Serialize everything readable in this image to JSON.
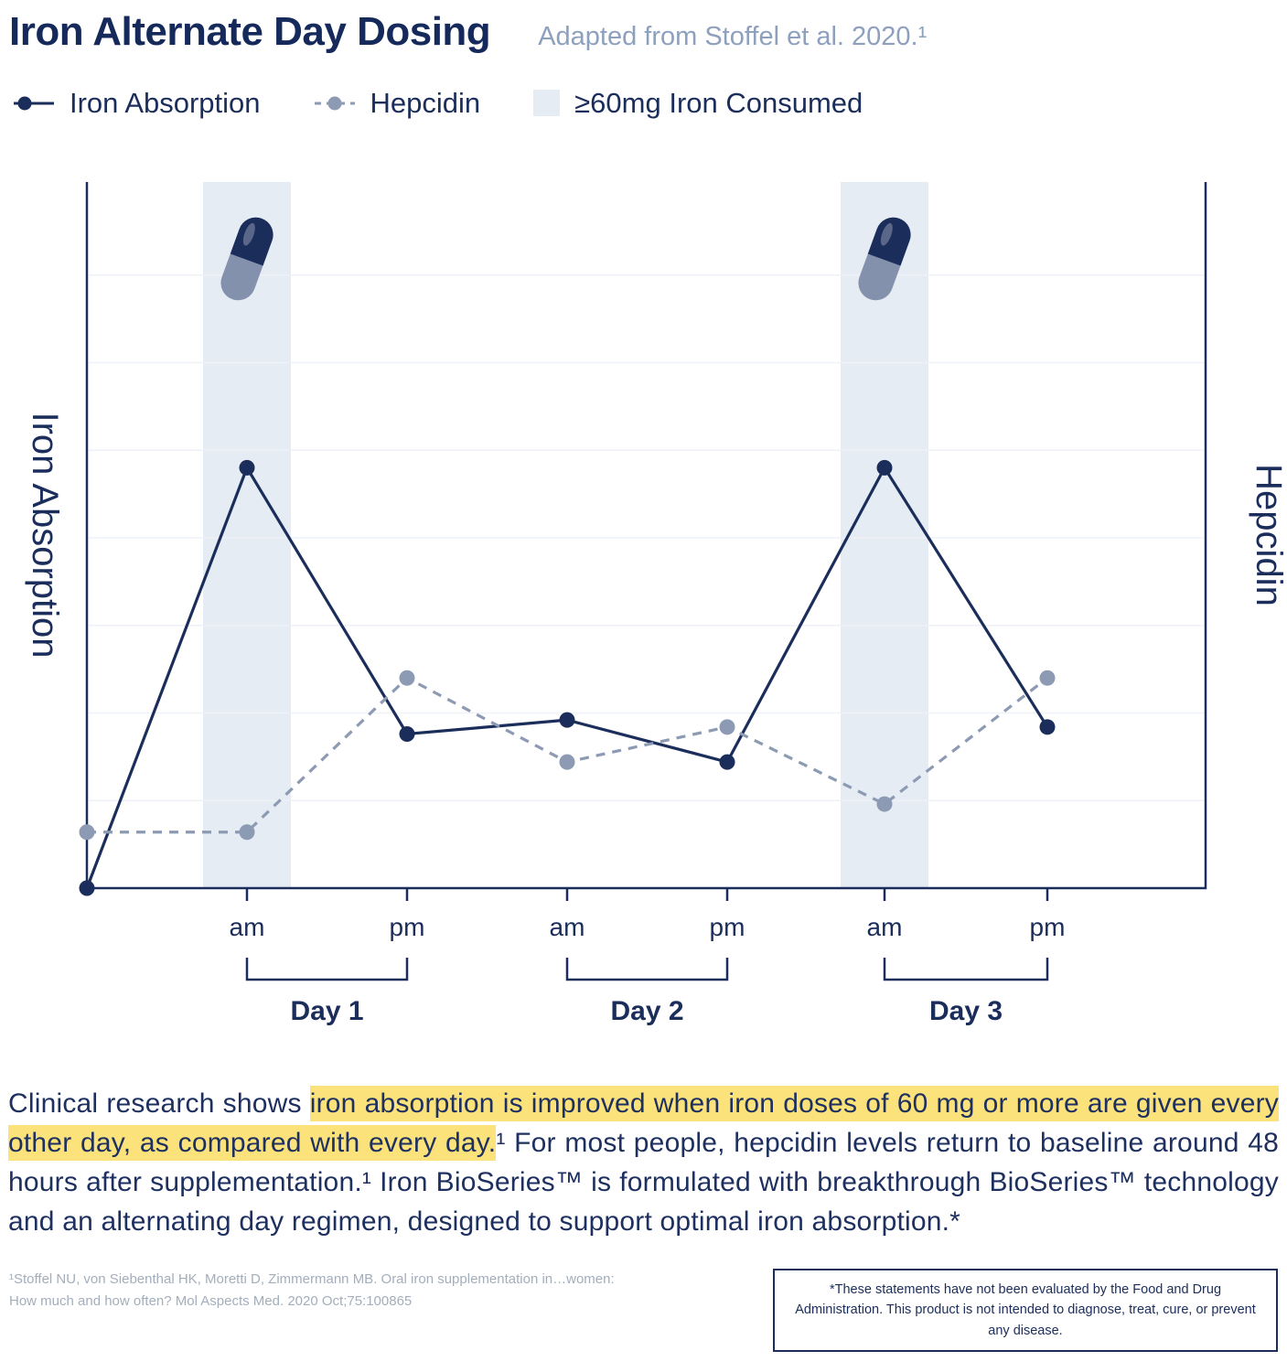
{
  "header": {
    "title": "Iron Alternate Day Dosing",
    "subtitle": "Adapted from Stoffel et al. 2020.¹"
  },
  "legend": {
    "iron": "Iron Absorption",
    "hepcidin": "Hepcidin",
    "band": "≥60mg Iron Consumed"
  },
  "colors": {
    "navy": "#1b2d5b",
    "grayblue": "#8c9ab3",
    "band": "#e6ecf3",
    "highlight": "#fbe27b",
    "pill_bottom": "#8391ad"
  },
  "chart_data": {
    "type": "line",
    "title": "Iron Alternate Day Dosing",
    "left_axis_label": "Iron Absorption",
    "right_axis_label": "Hepcidin",
    "x_ticks": [
      "am",
      "pm",
      "am",
      "pm",
      "am",
      "pm"
    ],
    "day_groups": [
      {
        "label": "Day 1",
        "ticks": [
          0,
          1
        ]
      },
      {
        "label": "Day 2",
        "ticks": [
          2,
          3
        ]
      },
      {
        "label": "Day 3",
        "ticks": [
          4,
          5
        ]
      }
    ],
    "ylim": [
      0,
      100
    ],
    "grid": "faint-horizontal",
    "legend_position": "top",
    "series": [
      {
        "name": "Iron Absorption",
        "style": "solid",
        "color": "#1b2d5b",
        "x": [
          -1,
          0,
          1,
          2,
          3,
          4,
          5
        ],
        "values": [
          0,
          60,
          22,
          24,
          18,
          60,
          23
        ]
      },
      {
        "name": "Hepcidin",
        "style": "dashed",
        "color": "#8c9ab3",
        "x": [
          -1,
          0,
          1,
          2,
          3,
          4,
          5
        ],
        "values": [
          8,
          8,
          30,
          18,
          23,
          12,
          30
        ]
      }
    ],
    "shaded_bands": {
      "label": "≥60mg Iron Consumed",
      "tick_indices": [
        0,
        4
      ]
    },
    "pill_at_ticks": [
      0,
      4
    ]
  },
  "body": {
    "segments": [
      {
        "text": "Clinical research shows ",
        "highlight": false
      },
      {
        "text": "iron absorption is improved when iron doses of 60 mg or more are given every other day, as compared with every day.",
        "highlight": true
      },
      {
        "text": "¹ For most people, hepcidin levels return to baseline around 48 hours after supplementation.¹ Iron BioSeries™ is formulated with breakthrough BioSeries™ technology and an alternating day regimen, designed to support optimal iron absorption.*",
        "highlight": false
      }
    ]
  },
  "footnote": {
    "line1": "¹Stoffel NU, von Siebenthal HK, Moretti D, Zimmermann MB. Oral iron supplementation in…women:",
    "line2": "How much and how often? Mol Aspects Med. 2020 Oct;75:100865"
  },
  "disclaimer": "*These statements have not been evaluated by the Food and Drug Administration. This product is not intended to diagnose, treat, cure, or prevent any disease."
}
